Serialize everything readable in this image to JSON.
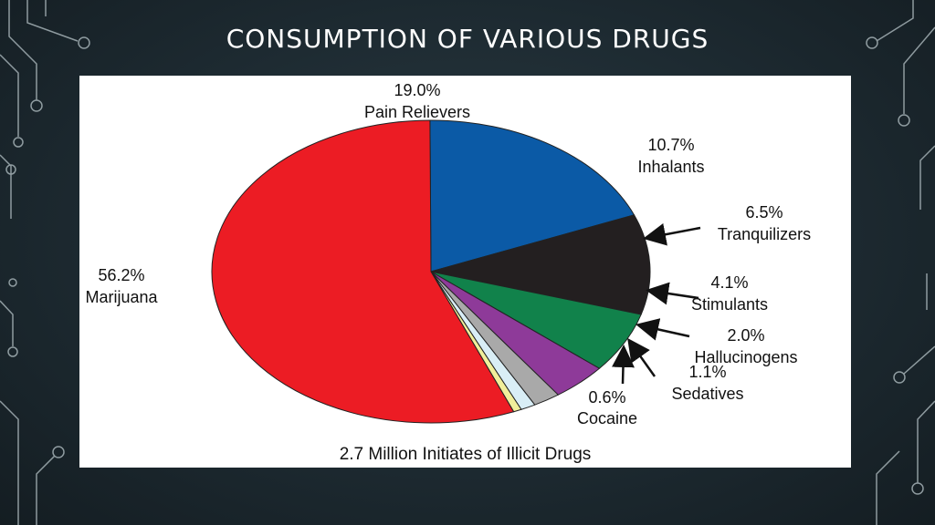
{
  "slide": {
    "title": "CONSUMPTION OF VARIOUS DRUGS"
  },
  "colors": {
    "background": "#1d2a31",
    "circuit": "#b7c4c8"
  },
  "chart_data": {
    "type": "pie",
    "caption": "2.7 Million Initiates of Illicit Drugs",
    "legend": "none",
    "slices": [
      {
        "label": "Pain Relievers",
        "value": 19.0,
        "value_label": "19.0%",
        "color": "#0b5aa6"
      },
      {
        "label": "Inhalants",
        "value": 10.7,
        "value_label": "10.7%",
        "color": "#231f20"
      },
      {
        "label": "Tranquilizers",
        "value": 6.5,
        "value_label": "6.5%",
        "color": "#11824b"
      },
      {
        "label": "Stimulants",
        "value": 4.1,
        "value_label": "4.1%",
        "color": "#8e3a99"
      },
      {
        "label": "Hallucinogens",
        "value": 2.0,
        "value_label": "2.0%",
        "color": "#a9a9a9"
      },
      {
        "label": "Sedatives",
        "value": 1.1,
        "value_label": "1.1%",
        "color": "#d9eef6"
      },
      {
        "label": "Cocaine",
        "value": 0.6,
        "value_label": "0.6%",
        "color": "#f1ef9b"
      },
      {
        "label": "Marijuana",
        "value": 56.2,
        "value_label": "56.2%",
        "color": "#ec1c24"
      }
    ]
  }
}
